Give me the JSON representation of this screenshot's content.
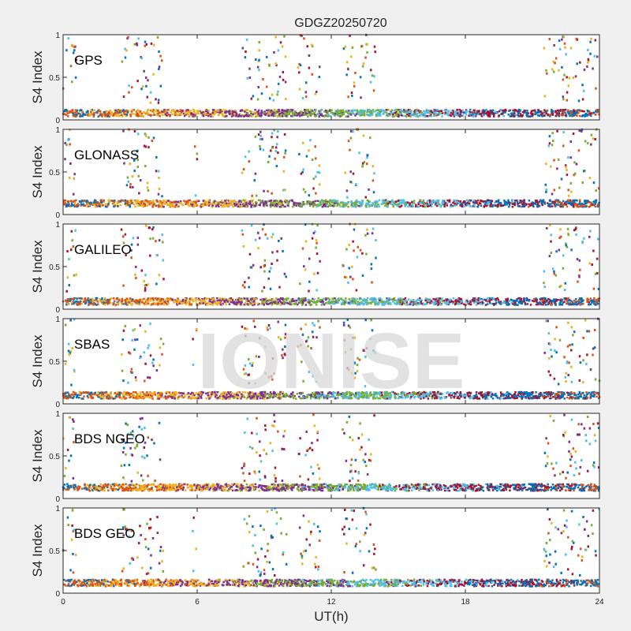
{
  "chart_data": {
    "type": "scatter",
    "title": "GDGZ20250720",
    "xlabel": "UT(h)",
    "xlim": [
      0,
      24
    ],
    "xticks": [
      0,
      6,
      12,
      18,
      24
    ],
    "watermark": "IONISE",
    "colors": [
      "#0072BD",
      "#D95319",
      "#EDB120",
      "#7E2F8E",
      "#77AC30",
      "#4DBEEE",
      "#A2142F"
    ],
    "panels": [
      {
        "label": "GPS",
        "ylabel": "S4 Index",
        "ylim": [
          0,
          1
        ],
        "yticks": [
          0,
          0.5,
          1
        ],
        "baseline_s4": 0.08,
        "scintillation_windows_h": [
          [
            0,
            0.6
          ],
          [
            2.6,
            4.5
          ],
          [
            8,
            10
          ],
          [
            10.5,
            11.5
          ],
          [
            12.5,
            14
          ],
          [
            21.5,
            24
          ]
        ]
      },
      {
        "label": "GLONASS",
        "ylabel": "S4 Index",
        "ylim": [
          0,
          1
        ],
        "yticks": [
          0,
          0.5,
          1
        ],
        "baseline_s4": 0.13,
        "scintillation_windows_h": [
          [
            0,
            0.6
          ],
          [
            2.6,
            4.5
          ],
          [
            5.8,
            6
          ],
          [
            8,
            10
          ],
          [
            10.5,
            11.5
          ],
          [
            12.5,
            14
          ],
          [
            21.5,
            24
          ]
        ]
      },
      {
        "label": "GALILEO",
        "ylabel": "S4 Index",
        "ylim": [
          0,
          1
        ],
        "yticks": [
          0,
          0.5,
          1
        ],
        "baseline_s4": 0.09,
        "scintillation_windows_h": [
          [
            0,
            0.6
          ],
          [
            2.6,
            4.5
          ],
          [
            8,
            10
          ],
          [
            10.5,
            11.5
          ],
          [
            12.5,
            14
          ],
          [
            21.5,
            24
          ]
        ]
      },
      {
        "label": "SBAS",
        "ylabel": "S4 Index",
        "ylim": [
          0,
          1
        ],
        "yticks": [
          0,
          0.5,
          1
        ],
        "baseline_s4": 0.1,
        "scintillation_windows_h": [
          [
            0,
            0.6
          ],
          [
            2.6,
            4.5
          ],
          [
            5.8,
            6
          ],
          [
            8,
            10
          ],
          [
            10.5,
            11.5
          ],
          [
            12.5,
            14
          ],
          [
            21.5,
            24
          ]
        ]
      },
      {
        "label": "BDS NGEO",
        "ylabel": "S4 Index",
        "ylim": [
          0,
          1
        ],
        "yticks": [
          0,
          0.5,
          1
        ],
        "baseline_s4": 0.13,
        "scintillation_windows_h": [
          [
            0,
            0.6
          ],
          [
            2.6,
            4.5
          ],
          [
            8,
            10
          ],
          [
            10.5,
            11.5
          ],
          [
            12.5,
            14
          ],
          [
            21.5,
            24
          ]
        ]
      },
      {
        "label": "BDS GEO",
        "ylabel": "S4 Index",
        "ylim": [
          0,
          1
        ],
        "yticks": [
          0,
          0.5,
          1
        ],
        "baseline_s4": 0.12,
        "scintillation_windows_h": [
          [
            0,
            0.6
          ],
          [
            2.6,
            4.5
          ],
          [
            5.8,
            6
          ],
          [
            8,
            10
          ],
          [
            10.5,
            11.5
          ],
          [
            12.5,
            14
          ],
          [
            21.5,
            24
          ]
        ]
      }
    ]
  }
}
